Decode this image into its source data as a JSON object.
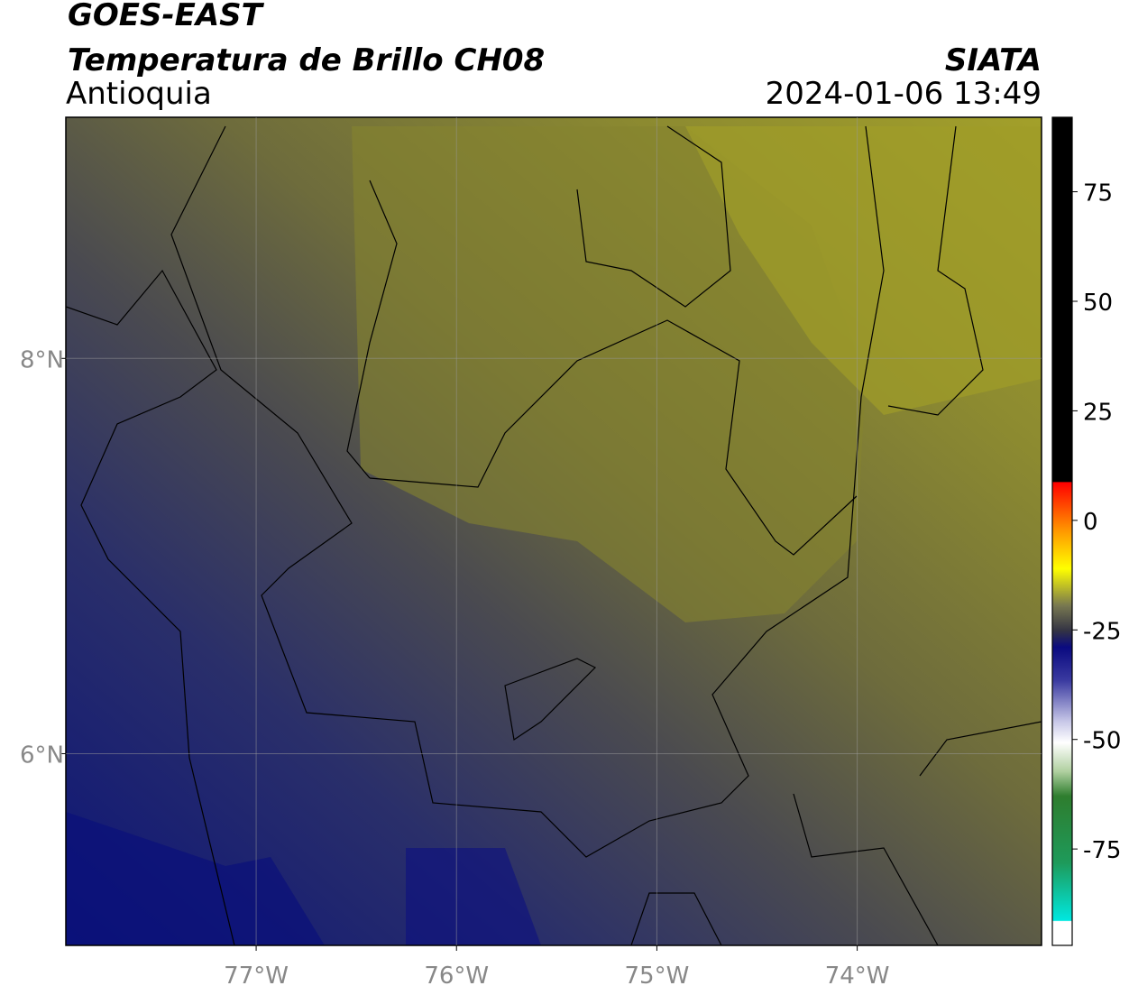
{
  "header": {
    "title": "GOES-EAST",
    "subtitle": "Temperatura de Brillo CH08",
    "region": "Antioquia",
    "source": "SIATA",
    "timestamp": "2024-01-06 13:49"
  },
  "map": {
    "lon_range": [
      -77.95,
      -73.08
    ],
    "lat_range": [
      5.03,
      9.22
    ],
    "lon_ticks": [
      {
        "value": -77,
        "label": "77°W"
      },
      {
        "value": -76,
        "label": "76°W"
      },
      {
        "value": -75,
        "label": "75°W"
      },
      {
        "value": -74,
        "label": "74°W"
      }
    ],
    "lat_ticks": [
      {
        "value": 8,
        "label": "8°N"
      },
      {
        "value": 6,
        "label": "6°N"
      }
    ],
    "grid": true
  },
  "colorbar": {
    "range": [
      -97,
      92
    ],
    "ticks": [
      75,
      50,
      25,
      0,
      -25,
      -50,
      -75
    ]
  }
}
